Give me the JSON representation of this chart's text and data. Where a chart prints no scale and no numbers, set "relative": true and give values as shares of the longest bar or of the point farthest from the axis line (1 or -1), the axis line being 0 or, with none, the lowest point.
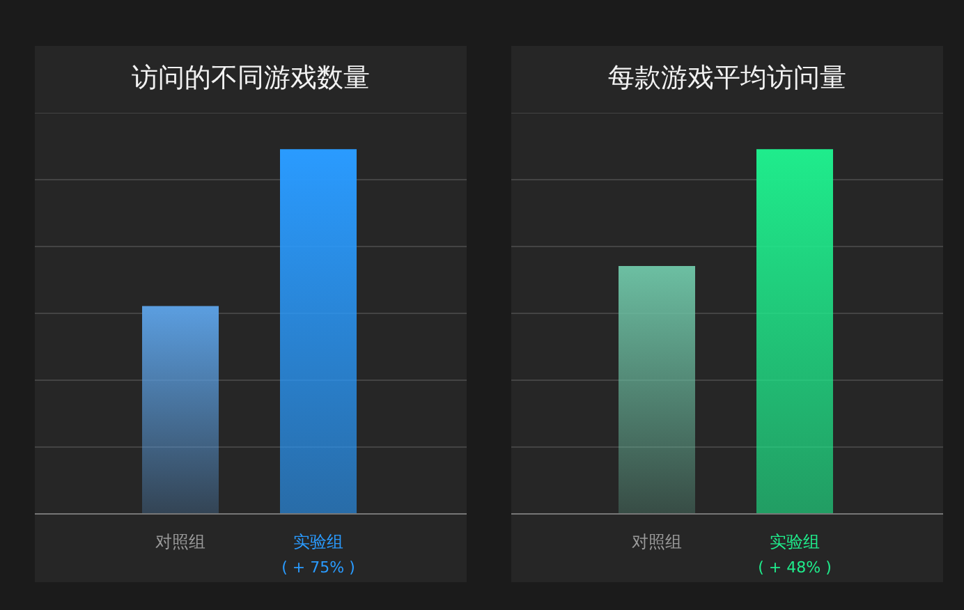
{
  "chart_data": [
    {
      "type": "bar",
      "title": "访问的不同游戏数量",
      "categories": [
        "对照组",
        "实验组"
      ],
      "values": [
        0.57,
        1
      ],
      "colors": [
        "#5b9ee0",
        "#2a9bff"
      ],
      "relative": true,
      "grid": "y",
      "annotations": [
        "( + 75% )"
      ]
    },
    {
      "type": "bar",
      "title": "每款游戏平均访问量",
      "categories": [
        "对照组",
        "实验组"
      ],
      "values": [
        0.68,
        1
      ],
      "colors": [
        "#6cbfa2",
        "#1fec8c"
      ],
      "relative": true,
      "grid": "y",
      "annotations": [
        "( + 48% )"
      ]
    }
  ]
}
